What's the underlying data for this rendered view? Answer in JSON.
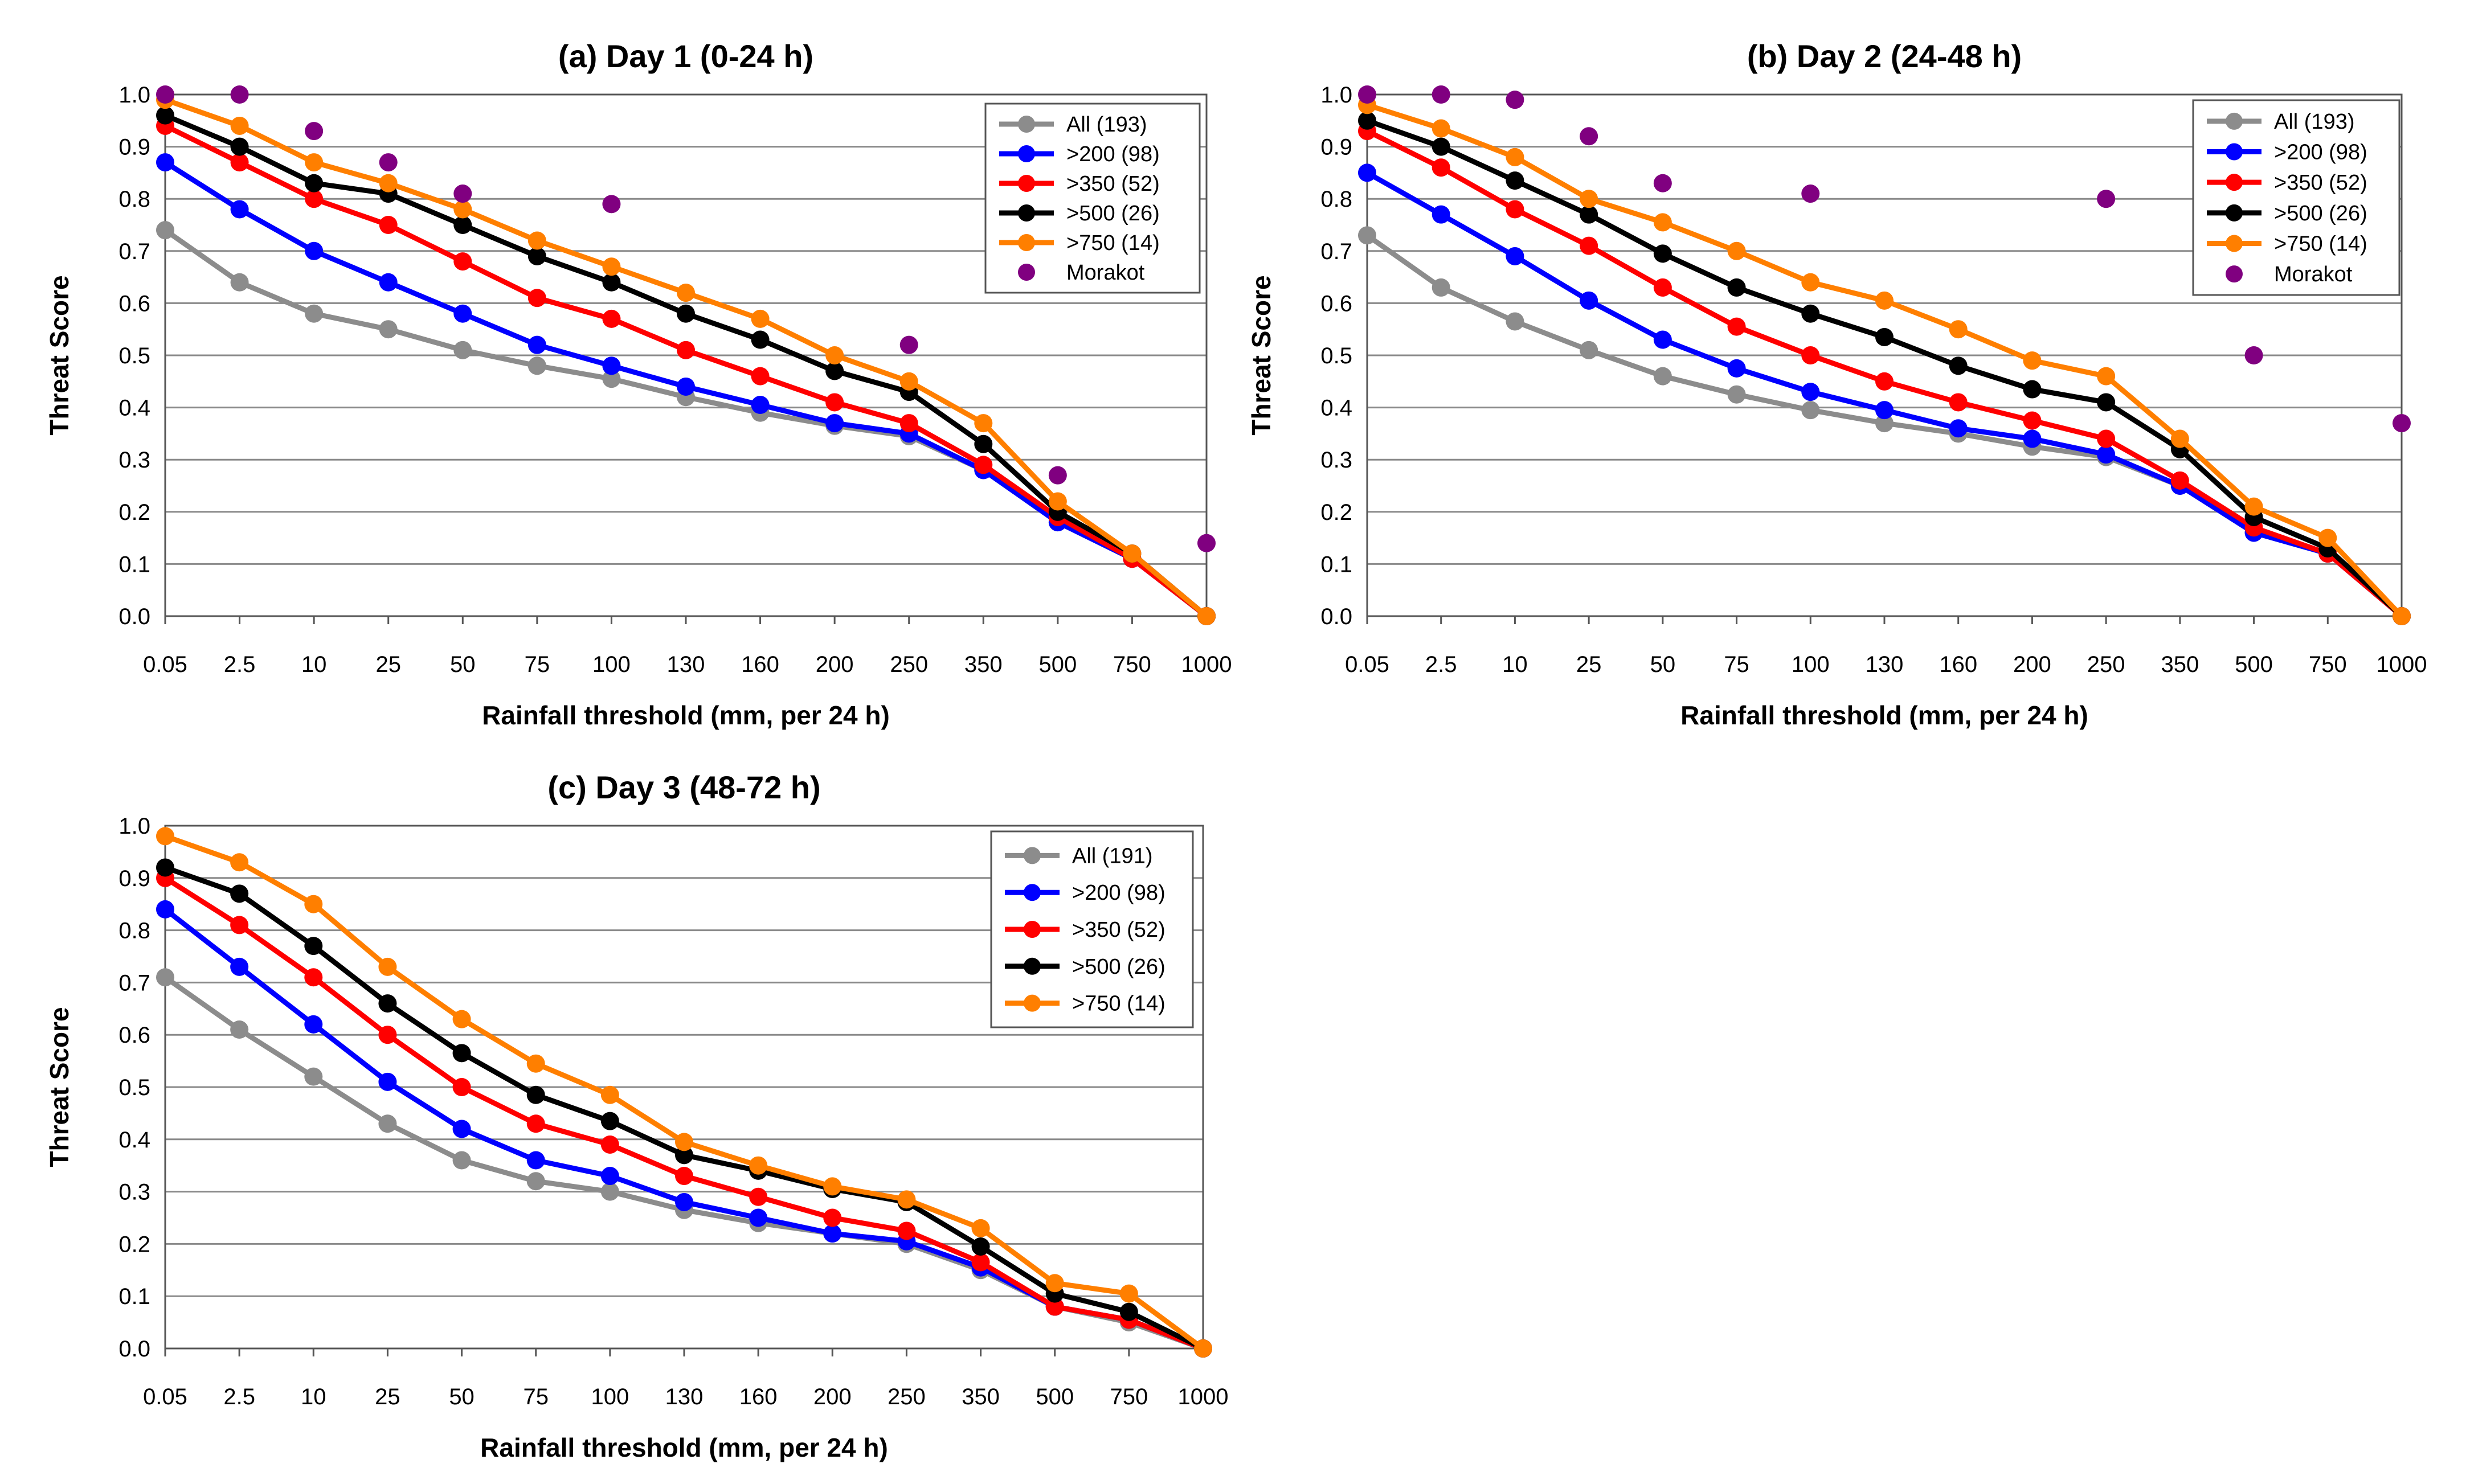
{
  "chart_data": [
    {
      "type": "line",
      "title": "(a)  Day 1 (0-24 h)",
      "xlabel": "Rainfall threshold (mm, per 24 h)",
      "ylabel": "Threat Score",
      "ylim": [
        0,
        1
      ],
      "yticks": [
        "0.0",
        "0.1",
        "0.2",
        "0.3",
        "0.4",
        "0.5",
        "0.6",
        "0.7",
        "0.8",
        "0.9",
        "1.0"
      ],
      "categories": [
        "0.05",
        "2.5",
        "10",
        "25",
        "50",
        "75",
        "100",
        "130",
        "160",
        "200",
        "250",
        "350",
        "500",
        "750",
        "1000"
      ],
      "grid": true,
      "legend_position": "top-right",
      "series": [
        {
          "name": "All (193)",
          "color": "#8c8c8c",
          "values": [
            0.74,
            0.64,
            0.58,
            0.55,
            0.51,
            0.48,
            0.455,
            0.42,
            0.39,
            0.365,
            0.345,
            0.28,
            0.18,
            0.11,
            0.0
          ]
        },
        {
          "name": ">200 (98)",
          "color": "#0000ff",
          "values": [
            0.87,
            0.78,
            0.7,
            0.64,
            0.58,
            0.52,
            0.48,
            0.44,
            0.405,
            0.37,
            0.35,
            0.28,
            0.18,
            0.11,
            0.0
          ]
        },
        {
          "name": ">350 (52)",
          "color": "#ff0000",
          "values": [
            0.94,
            0.87,
            0.8,
            0.75,
            0.68,
            0.61,
            0.57,
            0.51,
            0.46,
            0.41,
            0.37,
            0.29,
            0.19,
            0.11,
            0.0
          ]
        },
        {
          "name": ">500 (26)",
          "color": "#000000",
          "values": [
            0.96,
            0.9,
            0.83,
            0.81,
            0.75,
            0.69,
            0.64,
            0.58,
            0.53,
            0.47,
            0.43,
            0.33,
            0.2,
            0.12,
            0.0
          ]
        },
        {
          "name": ">750 (14)",
          "color": "#ff7f00",
          "values": [
            0.99,
            0.94,
            0.87,
            0.83,
            0.78,
            0.72,
            0.67,
            0.62,
            0.57,
            0.5,
            0.45,
            0.37,
            0.22,
            0.12,
            0.0
          ]
        }
      ],
      "markers": {
        "name": "Morakot",
        "color": "#800080",
        "values": [
          1.0,
          1.0,
          0.93,
          0.87,
          0.81,
          null,
          0.79,
          null,
          null,
          null,
          0.52,
          null,
          0.27,
          null,
          0.14
        ]
      }
    },
    {
      "type": "line",
      "title": "(b)  Day 2 (24-48 h)",
      "xlabel": "Rainfall threshold (mm, per 24 h)",
      "ylabel": "Threat Score",
      "ylim": [
        0,
        1
      ],
      "yticks": [
        "0.0",
        "0.1",
        "0.2",
        "0.3",
        "0.4",
        "0.5",
        "0.6",
        "0.7",
        "0.8",
        "0.9",
        "1.0"
      ],
      "categories": [
        "0.05",
        "2.5",
        "10",
        "25",
        "50",
        "75",
        "100",
        "130",
        "160",
        "200",
        "250",
        "350",
        "500",
        "750",
        "1000"
      ],
      "grid": true,
      "legend_position": "top-right",
      "series": [
        {
          "name": "All (193)",
          "color": "#8c8c8c",
          "values": [
            0.73,
            0.63,
            0.565,
            0.51,
            0.46,
            0.425,
            0.395,
            0.37,
            0.35,
            0.325,
            0.305,
            0.25,
            0.16,
            0.12,
            0.0
          ]
        },
        {
          "name": ">200 (98)",
          "color": "#0000ff",
          "values": [
            0.85,
            0.77,
            0.69,
            0.605,
            0.53,
            0.475,
            0.43,
            0.395,
            0.36,
            0.34,
            0.31,
            0.25,
            0.16,
            0.12,
            0.0
          ]
        },
        {
          "name": ">350 (52)",
          "color": "#ff0000",
          "values": [
            0.93,
            0.86,
            0.78,
            0.71,
            0.63,
            0.555,
            0.5,
            0.45,
            0.41,
            0.375,
            0.34,
            0.26,
            0.17,
            0.12,
            0.0
          ]
        },
        {
          "name": ">500 (26)",
          "color": "#000000",
          "values": [
            0.95,
            0.9,
            0.835,
            0.77,
            0.695,
            0.63,
            0.58,
            0.535,
            0.48,
            0.435,
            0.41,
            0.32,
            0.19,
            0.13,
            0.0
          ]
        },
        {
          "name": ">750 (14)",
          "color": "#ff7f00",
          "values": [
            0.98,
            0.935,
            0.88,
            0.8,
            0.755,
            0.7,
            0.64,
            0.605,
            0.55,
            0.49,
            0.46,
            0.34,
            0.21,
            0.15,
            0.0
          ]
        }
      ],
      "markers": {
        "name": "Morakot",
        "color": "#800080",
        "values": [
          1.0,
          1.0,
          0.99,
          0.92,
          0.83,
          null,
          0.81,
          null,
          null,
          null,
          0.8,
          null,
          0.5,
          null,
          0.37
        ]
      }
    },
    {
      "type": "line",
      "title": "(c)  Day 3 (48-72 h)",
      "xlabel": "Rainfall threshold (mm, per 24 h)",
      "ylabel": "Threat Score",
      "ylim": [
        0,
        1
      ],
      "yticks": [
        "0.0",
        "0.1",
        "0.2",
        "0.3",
        "0.4",
        "0.5",
        "0.6",
        "0.7",
        "0.8",
        "0.9",
        "1.0"
      ],
      "categories": [
        "0.05",
        "2.5",
        "10",
        "25",
        "50",
        "75",
        "100",
        "130",
        "160",
        "200",
        "250",
        "350",
        "500",
        "750",
        "1000"
      ],
      "grid": true,
      "legend_position": "top-right",
      "series": [
        {
          "name": "All (191)",
          "color": "#8c8c8c",
          "values": [
            0.71,
            0.61,
            0.52,
            0.43,
            0.36,
            0.32,
            0.3,
            0.265,
            0.24,
            0.22,
            0.2,
            0.15,
            0.08,
            0.05,
            0.0
          ]
        },
        {
          "name": ">200 (98)",
          "color": "#0000ff",
          "values": [
            0.84,
            0.73,
            0.62,
            0.51,
            0.42,
            0.36,
            0.33,
            0.28,
            0.25,
            0.22,
            0.205,
            0.155,
            0.08,
            0.055,
            0.0
          ]
        },
        {
          "name": ">350 (52)",
          "color": "#ff0000",
          "values": [
            0.9,
            0.81,
            0.71,
            0.6,
            0.5,
            0.43,
            0.39,
            0.33,
            0.29,
            0.25,
            0.225,
            0.165,
            0.08,
            0.055,
            0.0
          ]
        },
        {
          "name": ">500 (26)",
          "color": "#000000",
          "values": [
            0.92,
            0.87,
            0.77,
            0.66,
            0.565,
            0.485,
            0.435,
            0.37,
            0.34,
            0.305,
            0.28,
            0.195,
            0.105,
            0.07,
            0.0
          ]
        },
        {
          "name": ">750 (14)",
          "color": "#ff7f00",
          "values": [
            0.98,
            0.93,
            0.85,
            0.73,
            0.63,
            0.545,
            0.485,
            0.395,
            0.35,
            0.31,
            0.285,
            0.23,
            0.125,
            0.105,
            0.0
          ]
        }
      ]
    }
  ]
}
